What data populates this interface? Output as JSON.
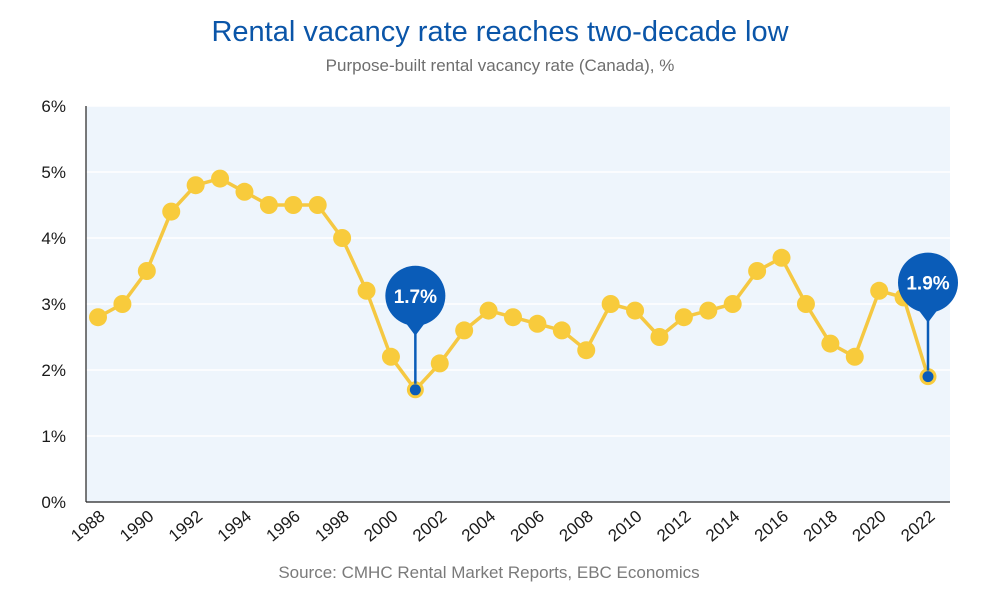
{
  "header": {
    "title": "Rental vacancy rate reaches two-decade low",
    "subtitle": "Purpose-built rental vacancy rate (Canada), %"
  },
  "footer": {
    "source": "Source: CMHC Rental Market Reports, EBC Economics"
  },
  "chart_data": {
    "type": "line",
    "title": "Rental vacancy rate reaches two-decade low",
    "subtitle": "Purpose-built rental vacancy rate (Canada), %",
    "xlabel": "",
    "ylabel": "",
    "x": [
      1988,
      1989,
      1990,
      1991,
      1992,
      1993,
      1994,
      1995,
      1996,
      1997,
      1998,
      1999,
      2000,
      2001,
      2002,
      2003,
      2004,
      2005,
      2006,
      2007,
      2008,
      2009,
      2010,
      2011,
      2012,
      2013,
      2014,
      2015,
      2016,
      2017,
      2018,
      2019,
      2020,
      2021,
      2022
    ],
    "series": [
      {
        "name": "Purpose-built rental vacancy rate",
        "values": [
          2.8,
          3.0,
          3.5,
          4.4,
          4.8,
          4.9,
          4.7,
          4.5,
          4.5,
          4.5,
          4.0,
          3.2,
          2.2,
          1.7,
          2.1,
          2.6,
          2.9,
          2.8,
          2.7,
          2.6,
          2.3,
          3.0,
          2.9,
          2.5,
          2.8,
          2.9,
          3.0,
          3.5,
          3.7,
          3.0,
          2.4,
          2.2,
          3.2,
          3.1,
          1.9
        ]
      }
    ],
    "xlim": [
      1988,
      2022
    ],
    "ylim": [
      0,
      6
    ],
    "yticks": [
      0,
      1,
      2,
      3,
      4,
      5,
      6
    ],
    "ytick_labels": [
      "0%",
      "1%",
      "2%",
      "3%",
      "4%",
      "5%",
      "6%"
    ],
    "xticks": [
      1988,
      1990,
      1992,
      1994,
      1996,
      1998,
      2000,
      2002,
      2004,
      2006,
      2008,
      2010,
      2012,
      2014,
      2016,
      2018,
      2020,
      2022
    ],
    "xtick_labels": [
      "1988",
      "1990",
      "1992",
      "1994",
      "1996",
      "1998",
      "2000",
      "2002",
      "2004",
      "2006",
      "2008",
      "2010",
      "2012",
      "2014",
      "2016",
      "2018",
      "2020",
      "2022"
    ],
    "annotations": [
      {
        "x": 2001,
        "y": 1.7,
        "label": "1.7%"
      },
      {
        "x": 2022,
        "y": 1.9,
        "label": "1.9%"
      }
    ],
    "colors": {
      "line": "#f5c842",
      "marker": "#f8cb3c",
      "highlight": "#0a5cb8",
      "plot_bg": "#eef5fc",
      "grid": "#ffffff",
      "axis": "#222222"
    },
    "grid": true,
    "legend": "none"
  }
}
